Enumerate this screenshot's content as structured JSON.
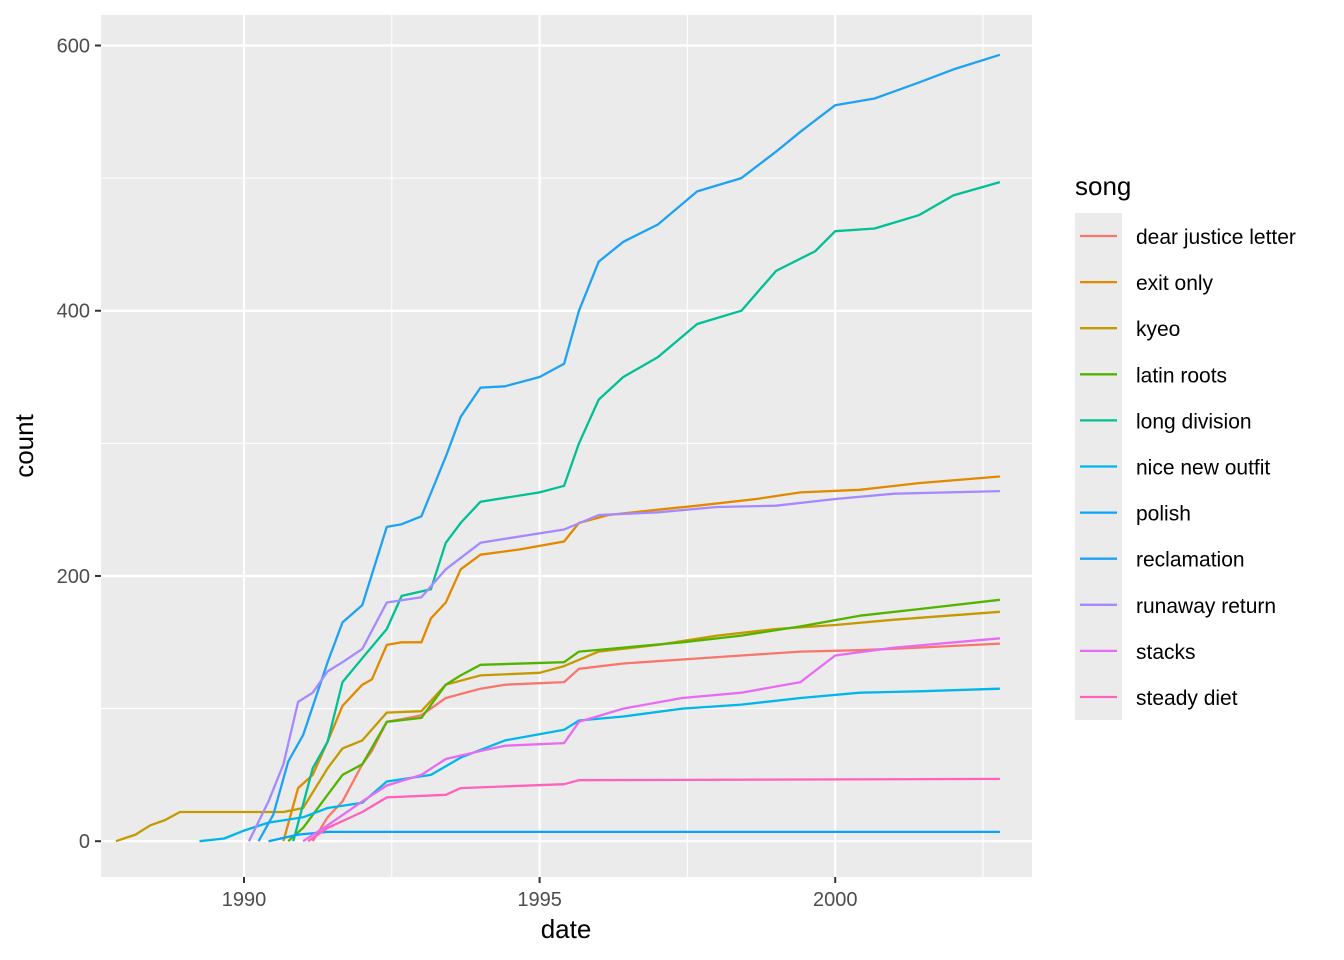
{
  "chart_data": {
    "type": "line",
    "xlabel": "date",
    "ylabel": "count",
    "x_ticks": [
      "1990",
      "1995",
      "2000"
    ],
    "y_ticks": [
      "0",
      "200",
      "400",
      "600"
    ],
    "xlim": [
      "1987-08-01",
      "2003-05-01"
    ],
    "ylim": [
      -27,
      623
    ],
    "grid": true,
    "panel_background": "#ebebeb",
    "legend": {
      "title": "song",
      "position": "right"
    },
    "series": [
      {
        "name": "dear justice letter",
        "color": "#F8766D",
        "points": [
          [
            "1991-03-01",
            0
          ],
          [
            "1991-06-01",
            18
          ],
          [
            "1991-09-01",
            30
          ],
          [
            "1992-01-01",
            58
          ],
          [
            "1992-03-01",
            68
          ],
          [
            "1992-06-01",
            90
          ],
          [
            "1992-09-01",
            92
          ],
          [
            "1993-01-01",
            95
          ],
          [
            "1993-06-01",
            108
          ],
          [
            "1994-01-01",
            115
          ],
          [
            "1994-06-01",
            118
          ],
          [
            "1995-06-01",
            120
          ],
          [
            "1995-09-01",
            130
          ],
          [
            "1996-06-01",
            134
          ],
          [
            "1997-06-01",
            137
          ],
          [
            "1998-06-01",
            140
          ],
          [
            "1999-06-01",
            143
          ],
          [
            "2000-06-01",
            144
          ],
          [
            "2001-06-01",
            146
          ],
          [
            "2002-10-15",
            149
          ]
        ]
      },
      {
        "name": "exit only",
        "color": "#E38900",
        "points": [
          [
            "1990-09-01",
            0
          ],
          [
            "1990-12-01",
            40
          ],
          [
            "1991-03-01",
            50
          ],
          [
            "1991-06-01",
            75
          ],
          [
            "1991-09-01",
            102
          ],
          [
            "1992-01-01",
            118
          ],
          [
            "1992-03-01",
            122
          ],
          [
            "1992-06-01",
            148
          ],
          [
            "1992-09-01",
            150
          ],
          [
            "1993-01-01",
            150
          ],
          [
            "1993-03-01",
            168
          ],
          [
            "1993-06-01",
            180
          ],
          [
            "1993-09-01",
            205
          ],
          [
            "1994-01-01",
            216
          ],
          [
            "1994-09-01",
            220
          ],
          [
            "1995-06-01",
            226
          ],
          [
            "1995-09-01",
            240
          ],
          [
            "1996-03-01",
            246
          ],
          [
            "1997-01-01",
            250
          ],
          [
            "1997-09-01",
            253
          ],
          [
            "1998-09-01",
            258
          ],
          [
            "1999-06-01",
            263
          ],
          [
            "2000-06-01",
            265
          ],
          [
            "2001-06-01",
            270
          ],
          [
            "2002-10-15",
            275
          ]
        ]
      },
      {
        "name": "kyeo",
        "color": "#C49A00",
        "points": [
          [
            "1987-11-01",
            0
          ],
          [
            "1988-03-01",
            5
          ],
          [
            "1988-06-01",
            12
          ],
          [
            "1988-09-01",
            16
          ],
          [
            "1988-12-01",
            22
          ],
          [
            "1990-09-01",
            22
          ],
          [
            "1991-01-01",
            25
          ],
          [
            "1991-06-01",
            55
          ],
          [
            "1991-09-01",
            70
          ],
          [
            "1992-01-01",
            76
          ],
          [
            "1992-06-01",
            97
          ],
          [
            "1993-01-01",
            98
          ],
          [
            "1993-06-01",
            118
          ],
          [
            "1994-01-01",
            125
          ],
          [
            "1995-01-01",
            127
          ],
          [
            "1995-06-01",
            132
          ],
          [
            "1996-01-01",
            143
          ],
          [
            "1997-01-01",
            148
          ],
          [
            "1998-01-01",
            155
          ],
          [
            "1999-01-01",
            160
          ],
          [
            "2000-01-01",
            163
          ],
          [
            "2001-01-01",
            167
          ],
          [
            "2002-10-15",
            173
          ]
        ]
      },
      {
        "name": "latin roots",
        "color": "#53B400",
        "points": [
          [
            "1990-10-01",
            0
          ],
          [
            "1991-01-01",
            10
          ],
          [
            "1991-06-01",
            35
          ],
          [
            "1991-09-01",
            50
          ],
          [
            "1992-01-01",
            58
          ],
          [
            "1992-06-01",
            90
          ],
          [
            "1993-01-01",
            93
          ],
          [
            "1993-06-01",
            118
          ],
          [
            "1993-09-01",
            125
          ],
          [
            "1994-01-01",
            133
          ],
          [
            "1995-06-01",
            135
          ],
          [
            "1995-09-01",
            143
          ],
          [
            "1996-06-01",
            146
          ],
          [
            "1997-06-01",
            150
          ],
          [
            "1998-06-01",
            155
          ],
          [
            "1999-06-01",
            162
          ],
          [
            "2000-06-01",
            170
          ],
          [
            "2001-06-01",
            175
          ],
          [
            "2002-10-15",
            182
          ]
        ]
      },
      {
        "name": "long division",
        "color": "#00C094",
        "points": [
          [
            "1990-11-01",
            0
          ],
          [
            "1991-03-01",
            55
          ],
          [
            "1991-06-01",
            75
          ],
          [
            "1991-09-01",
            120
          ],
          [
            "1992-01-01",
            138
          ],
          [
            "1992-06-01",
            160
          ],
          [
            "1992-09-01",
            185
          ],
          [
            "1993-03-01",
            190
          ],
          [
            "1993-06-01",
            225
          ],
          [
            "1993-09-01",
            240
          ],
          [
            "1994-01-01",
            256
          ],
          [
            "1995-01-01",
            263
          ],
          [
            "1995-06-01",
            268
          ],
          [
            "1995-09-01",
            300
          ],
          [
            "1996-01-01",
            333
          ],
          [
            "1996-06-01",
            350
          ],
          [
            "1997-01-01",
            365
          ],
          [
            "1997-09-01",
            390
          ],
          [
            "1998-06-01",
            400
          ],
          [
            "1999-01-01",
            430
          ],
          [
            "1999-09-01",
            445
          ],
          [
            "2000-01-01",
            460
          ],
          [
            "2000-09-01",
            462
          ],
          [
            "2001-06-01",
            472
          ],
          [
            "2002-01-01",
            487
          ],
          [
            "2002-10-15",
            497
          ]
        ]
      },
      {
        "name": "nice new outfit",
        "color": "#00B6EB",
        "points": [
          [
            "1989-04-01",
            0
          ],
          [
            "1989-09-01",
            2
          ],
          [
            "1990-01-01",
            8
          ],
          [
            "1990-06-01",
            14
          ],
          [
            "1991-01-01",
            18
          ],
          [
            "1991-06-01",
            25
          ],
          [
            "1992-01-01",
            29
          ],
          [
            "1992-06-01",
            45
          ],
          [
            "1993-03-01",
            50
          ],
          [
            "1993-09-01",
            63
          ],
          [
            "1994-06-01",
            76
          ],
          [
            "1995-06-01",
            84
          ],
          [
            "1995-09-01",
            91
          ],
          [
            "1996-06-01",
            94
          ],
          [
            "1997-06-01",
            100
          ],
          [
            "1998-06-01",
            103
          ],
          [
            "1999-06-01",
            108
          ],
          [
            "2000-06-01",
            112
          ],
          [
            "2001-06-01",
            113
          ],
          [
            "2002-10-15",
            115
          ]
        ]
      },
      {
        "name": "polish",
        "color": "#06A4FF",
        "points": [
          [
            "1990-06-01",
            0
          ],
          [
            "1990-12-01",
            5
          ],
          [
            "1991-06-01",
            7
          ],
          [
            "2002-10-15",
            7
          ]
        ]
      },
      {
        "name": "reclamation",
        "color": "#1FA2F4",
        "points": [
          [
            "1990-04-01",
            0
          ],
          [
            "1990-07-01",
            20
          ],
          [
            "1990-10-01",
            60
          ],
          [
            "1991-01-01",
            80
          ],
          [
            "1991-06-01",
            135
          ],
          [
            "1991-09-01",
            165
          ],
          [
            "1992-01-01",
            178
          ],
          [
            "1992-06-01",
            237
          ],
          [
            "1992-09-01",
            239
          ],
          [
            "1993-01-01",
            245
          ],
          [
            "1993-06-01",
            290
          ],
          [
            "1993-09-01",
            320
          ],
          [
            "1994-01-01",
            342
          ],
          [
            "1994-06-01",
            343
          ],
          [
            "1995-01-01",
            350
          ],
          [
            "1995-06-01",
            360
          ],
          [
            "1995-09-01",
            400
          ],
          [
            "1996-01-01",
            437
          ],
          [
            "1996-06-01",
            452
          ],
          [
            "1997-01-01",
            465
          ],
          [
            "1997-09-01",
            490
          ],
          [
            "1998-06-01",
            500
          ],
          [
            "1999-01-01",
            520
          ],
          [
            "1999-06-01",
            535
          ],
          [
            "2000-01-01",
            555
          ],
          [
            "2000-09-01",
            560
          ],
          [
            "2001-06-01",
            572
          ],
          [
            "2002-01-01",
            582
          ],
          [
            "2002-10-15",
            593
          ]
        ]
      },
      {
        "name": "runaway return",
        "color": "#A58AFF",
        "points": [
          [
            "1990-02-01",
            0
          ],
          [
            "1990-06-01",
            30
          ],
          [
            "1990-09-01",
            58
          ],
          [
            "1990-12-01",
            105
          ],
          [
            "1991-03-01",
            112
          ],
          [
            "1991-06-01",
            128
          ],
          [
            "1991-09-01",
            135
          ],
          [
            "1992-01-01",
            145
          ],
          [
            "1992-06-01",
            180
          ],
          [
            "1993-01-01",
            184
          ],
          [
            "1993-06-01",
            205
          ],
          [
            "1994-01-01",
            225
          ],
          [
            "1994-06-01",
            228
          ],
          [
            "1995-06-01",
            235
          ],
          [
            "1996-01-01",
            246
          ],
          [
            "1997-01-01",
            248
          ],
          [
            "1998-01-01",
            252
          ],
          [
            "1999-01-01",
            253
          ],
          [
            "2000-01-01",
            258
          ],
          [
            "2001-01-01",
            262
          ],
          [
            "2002-10-15",
            264
          ]
        ]
      },
      {
        "name": "stacks",
        "color": "#E76BF3",
        "points": [
          [
            "1991-01-01",
            0
          ],
          [
            "1991-06-01",
            12
          ],
          [
            "1992-01-01",
            30
          ],
          [
            "1992-06-01",
            42
          ],
          [
            "1993-01-01",
            50
          ],
          [
            "1993-06-01",
            62
          ],
          [
            "1994-01-01",
            68
          ],
          [
            "1994-06-01",
            72
          ],
          [
            "1995-06-01",
            74
          ],
          [
            "1995-09-01",
            90
          ],
          [
            "1996-06-01",
            100
          ],
          [
            "1997-06-01",
            108
          ],
          [
            "1998-06-01",
            112
          ],
          [
            "1999-06-01",
            120
          ],
          [
            "2000-01-01",
            140
          ],
          [
            "2001-01-01",
            146
          ],
          [
            "2002-10-15",
            153
          ]
        ]
      },
      {
        "name": "steady diet",
        "color": "#FF62BC",
        "points": [
          [
            "1991-02-01",
            0
          ],
          [
            "1991-06-01",
            10
          ],
          [
            "1992-01-01",
            22
          ],
          [
            "1992-06-01",
            33
          ],
          [
            "1993-06-01",
            35
          ],
          [
            "1993-09-01",
            40
          ],
          [
            "1995-06-01",
            43
          ],
          [
            "1995-09-01",
            46
          ],
          [
            "2002-10-15",
            47
          ]
        ]
      }
    ]
  }
}
